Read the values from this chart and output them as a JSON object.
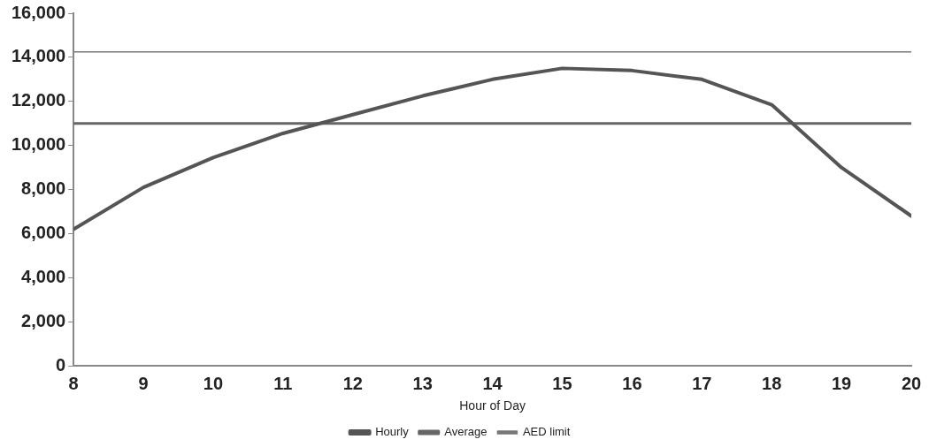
{
  "chart_data": {
    "type": "line",
    "xlabel": "Hour of Day",
    "x": [
      8,
      9,
      10,
      11,
      12,
      13,
      14,
      15,
      16,
      17,
      18,
      19,
      20
    ],
    "xlim": [
      8,
      20
    ],
    "xticks": [
      8,
      9,
      10,
      11,
      12,
      13,
      14,
      15,
      16,
      17,
      18,
      19,
      20
    ],
    "ylim": [
      0,
      16000
    ],
    "yticks": [
      {
        "value": 0,
        "label": "0"
      },
      {
        "value": 2000,
        "label": "2,000"
      },
      {
        "value": 4000,
        "label": "4,000"
      },
      {
        "value": 6000,
        "label": "6,000"
      },
      {
        "value": 8000,
        "label": "8,000"
      },
      {
        "value": 10000,
        "label": "10,000"
      },
      {
        "value": 12000,
        "label": "12,000"
      },
      {
        "value": 14000,
        "label": "14,000"
      },
      {
        "value": 16000,
        "label": "16,000"
      }
    ],
    "series": [
      {
        "name": "Hourly",
        "color": "#555555",
        "values": [
          6200,
          8100,
          9450,
          10550,
          11400,
          12250,
          13000,
          13500,
          13400,
          13000,
          11850,
          9000,
          6800
        ]
      },
      {
        "name": "Average",
        "color": "#666666",
        "values": [
          11000,
          11000,
          11000,
          11000,
          11000,
          11000,
          11000,
          11000,
          11000,
          11000,
          11000,
          11000,
          11000
        ]
      },
      {
        "name": "AED limit",
        "color": "#777777",
        "values": [
          14250,
          14250,
          14250,
          14250,
          14250,
          14250,
          14250,
          14250,
          14250,
          14250,
          14250,
          14250,
          14250
        ]
      }
    ],
    "grid": false,
    "legend": "bottom",
    "marker": "none",
    "line_style": "solid"
  }
}
